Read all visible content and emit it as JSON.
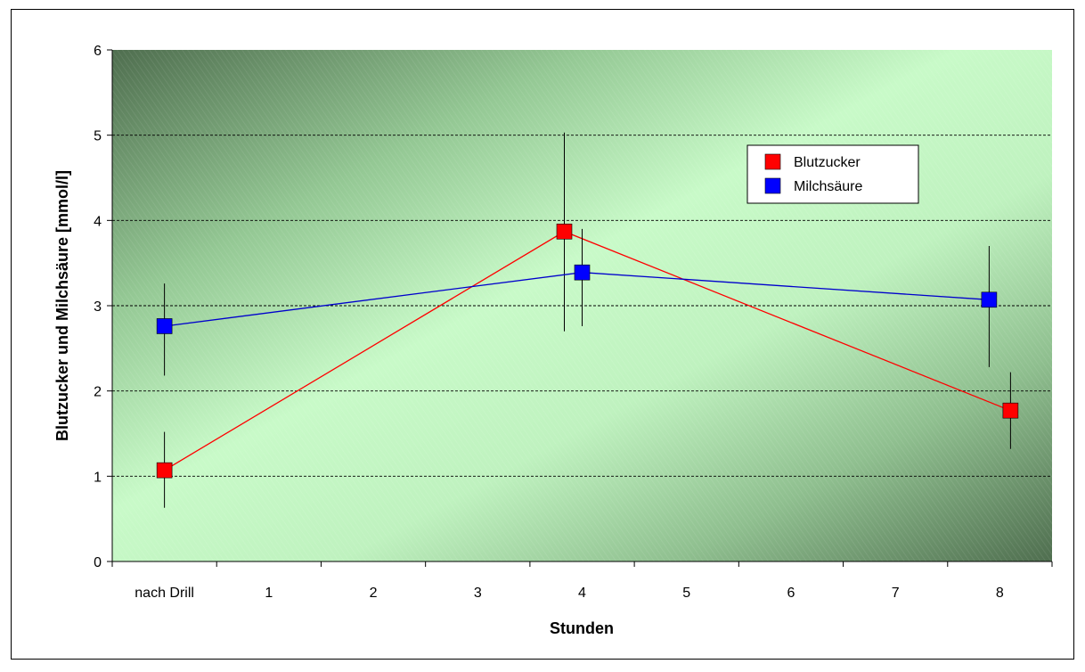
{
  "chart_data": {
    "type": "line",
    "categories": [
      "nach Drill",
      "1",
      "2",
      "3",
      "4",
      "5",
      "6",
      "7",
      "8"
    ],
    "xlabel": "Stunden",
    "ylabel": "Blutzucker und Milchsäure   [mmol/l]",
    "ylim": [
      0,
      6
    ],
    "yticks": [
      0,
      1,
      2,
      3,
      4,
      5,
      6
    ],
    "grid": true,
    "legend_position": "top-right",
    "background": "green gradient",
    "series": [
      {
        "name": "Blutzucker",
        "color": "#ff0000",
        "line_color": "#ff0000",
        "points": [
          {
            "x": "nach Drill",
            "y": 1.07,
            "err_low": 0.63,
            "err_high": 1.52
          },
          {
            "x": "4",
            "y": 3.87,
            "err_low": 2.7,
            "err_high": 5.03
          },
          {
            "x": "8",
            "y": 1.77,
            "err_low": 1.32,
            "err_high": 2.22
          }
        ]
      },
      {
        "name": "Milchsäure",
        "color": "#0000ff",
        "line_color": "#0000cc",
        "points": [
          {
            "x": "nach Drill",
            "y": 2.76,
            "err_low": 2.18,
            "err_high": 3.26
          },
          {
            "x": "4",
            "y": 3.39,
            "err_low": 2.76,
            "err_high": 3.9
          },
          {
            "x": "8",
            "y": 3.07,
            "err_low": 2.28,
            "err_high": 3.7
          }
        ]
      }
    ]
  }
}
